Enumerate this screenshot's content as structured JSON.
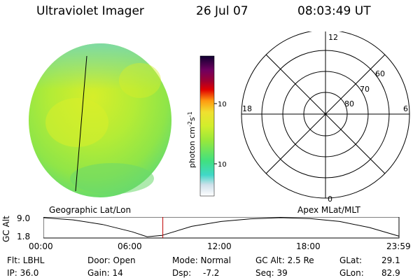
{
  "header": {
    "title": "Ultraviolet Imager",
    "date": "26 Jul 07",
    "time": "08:03:49 UT"
  },
  "colorbar": {
    "unit_label": "photon cm",
    "unit_sup1": "-2",
    "unit_mid": "s",
    "unit_sup2": "-1",
    "tick_100": "100",
    "tick_10": "10"
  },
  "polar": {
    "label_top": "12",
    "label_bottom": "0",
    "label_left": "18",
    "label_right": "6",
    "ring_60": "60",
    "ring_70": "70",
    "ring_80": "80"
  },
  "plot_labels": {
    "left": "Geographic Lat/Lon",
    "right": "Apex MLat/MLT"
  },
  "alt_axis": {
    "ylabel": "GC Alt",
    "ymax": "9.0",
    "ymin": "1.8",
    "xticks": [
      "00:00",
      "06:00",
      "12:00",
      "18:00",
      "23:59"
    ]
  },
  "chart_data": {
    "type": "line",
    "ylabel": "GC Alt",
    "ylim": [
      1.8,
      9.0
    ],
    "x_hours": [
      0,
      2,
      4,
      6,
      7,
      8,
      10,
      12,
      14,
      16,
      18,
      20,
      22,
      24
    ],
    "values": [
      9.0,
      8.2,
      6.5,
      3.8,
      2.0,
      2.5,
      5.8,
      7.6,
      8.6,
      9.0,
      8.7,
      7.6,
      5.4,
      2.2
    ],
    "marker_hours": 8.06
  },
  "footer": {
    "flt": "Flt: LBHL",
    "ip": "IP: 36.0",
    "door": "Door: Open",
    "gain": "Gain: 14",
    "mode": "Mode: Normal",
    "dsp_label": "Dsp:",
    "dsp_value": "-7.2",
    "gcalt": "GC Alt: 2.5 Re",
    "seq": "Seq: 39",
    "glat_label": "GLat:",
    "glat_value": "29.1",
    "glon_label": "GLon:",
    "glon_value": "82.9"
  },
  "colors": {
    "disk_green": "#9ee83a",
    "disk_yellow": "#d2ee2c",
    "marker_red": "#c00000"
  }
}
